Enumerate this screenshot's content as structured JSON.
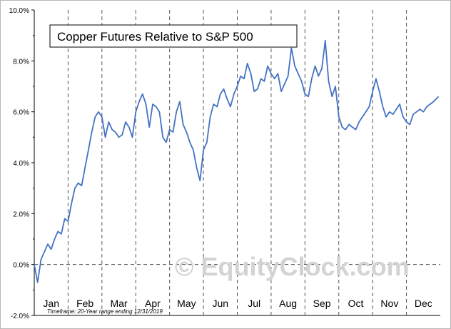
{
  "chart_data": {
    "type": "line",
    "title": "Copper Futures Relative to S&P 500",
    "xlabel": "",
    "ylabel": "",
    "ylim": [
      -2.0,
      10.0
    ],
    "yticks": [
      "10.0%",
      "8.0%",
      "6.0%",
      "4.0%",
      "2.0%",
      "0.0%",
      "-2.0%"
    ],
    "ytick_values": [
      10,
      8,
      6,
      4,
      2,
      0,
      -2
    ],
    "months": [
      "Jan",
      "Feb",
      "Mar",
      "Apr",
      "May",
      "Jun",
      "Jul",
      "Aug",
      "Sep",
      "Oct",
      "Nov",
      "Dec"
    ],
    "grid": "vertical dashed lines at month boundaries, horizontal at 0%",
    "line_color": "#4472c4",
    "series": [
      {
        "x": [
          0,
          0.1,
          0.2,
          0.3,
          0.4,
          0.5,
          0.6,
          0.7,
          0.8,
          0.9,
          1.0,
          1.1,
          1.2,
          1.3,
          1.4,
          1.5,
          1.6,
          1.7,
          1.8,
          1.9,
          2.0,
          2.1,
          2.2,
          2.3,
          2.4,
          2.5,
          2.6,
          2.7,
          2.8,
          2.9,
          3.0,
          3.1,
          3.2,
          3.3,
          3.4,
          3.5,
          3.6,
          3.7,
          3.8,
          3.9,
          4.0,
          4.1,
          4.2,
          4.3,
          4.4,
          4.5,
          4.6,
          4.7,
          4.8,
          4.9,
          5.0,
          5.1,
          5.2,
          5.3,
          5.4,
          5.5,
          5.6,
          5.7,
          5.8,
          5.9,
          6.0,
          6.1,
          6.2,
          6.3,
          6.4,
          6.5,
          6.6,
          6.7,
          6.8,
          6.9,
          7.0,
          7.1,
          7.2,
          7.3,
          7.4,
          7.5,
          7.6,
          7.7,
          7.8,
          7.9,
          8.0,
          8.1,
          8.2,
          8.3,
          8.4,
          8.5,
          8.6,
          8.7,
          8.8,
          8.9,
          9.0,
          9.1,
          9.2,
          9.3,
          9.4,
          9.5,
          9.6,
          9.7,
          9.8,
          9.9,
          10.0,
          10.1,
          10.2,
          10.3,
          10.4,
          10.5,
          10.6,
          10.7,
          10.8,
          10.9,
          11.0,
          11.1,
          11.2,
          11.3,
          11.4,
          11.5,
          11.6,
          11.7,
          11.8,
          11.95
        ],
        "y": [
          0.0,
          -0.7,
          0.2,
          0.5,
          0.8,
          0.6,
          1.0,
          1.3,
          1.2,
          1.8,
          1.7,
          2.4,
          3.0,
          3.2,
          3.1,
          3.8,
          4.5,
          5.2,
          5.8,
          6.0,
          5.8,
          5.0,
          5.6,
          5.3,
          5.2,
          5.0,
          5.1,
          5.6,
          5.4,
          5.0,
          6.0,
          6.4,
          6.7,
          6.3,
          5.4,
          6.3,
          6.2,
          6.0,
          5.0,
          4.8,
          5.3,
          5.2,
          6.0,
          6.4,
          5.5,
          5.2,
          4.8,
          4.5,
          3.8,
          3.3,
          4.5,
          4.8,
          5.8,
          6.3,
          6.2,
          6.7,
          6.9,
          6.5,
          6.2,
          6.7,
          7.0,
          7.4,
          7.3,
          7.9,
          7.5,
          6.8,
          6.9,
          7.3,
          7.2,
          7.8,
          7.5,
          7.3,
          7.5,
          6.8,
          7.1,
          7.4,
          8.5,
          7.8,
          7.5,
          7.2,
          6.7,
          6.6,
          7.3,
          7.8,
          7.4,
          7.7,
          8.8,
          7.2,
          6.6,
          7.0,
          5.8,
          5.4,
          5.3,
          5.5,
          5.4,
          5.3,
          5.6,
          5.8,
          6.0,
          6.2,
          6.8,
          7.3,
          6.8,
          6.2,
          5.8,
          6.0,
          5.9,
          6.1,
          6.3,
          5.8,
          5.6,
          5.5,
          5.9,
          6.0,
          6.1,
          6.0,
          6.2,
          6.3,
          6.4,
          6.6
        ]
      }
    ]
  },
  "annotations": {
    "timeframe_note": "Timeframe: 20-Year range ending 12/31/2019",
    "watermark": "© EquityClock.com"
  }
}
